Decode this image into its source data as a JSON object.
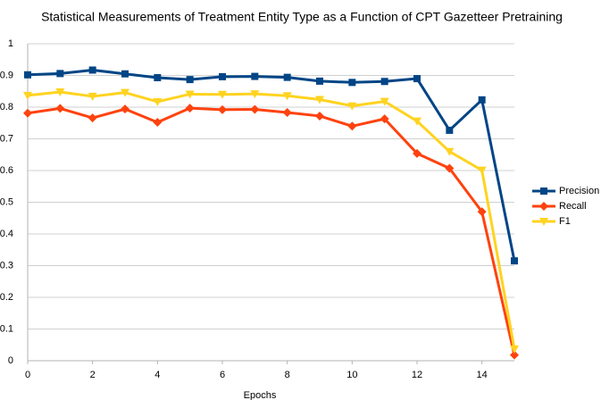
{
  "chart_data": {
    "type": "line",
    "title": "Statistical Measurements of Treatment Entity Type as a Function of CPT Gazetteer Pretraining",
    "x_label": "Epochs",
    "x": [
      0,
      1,
      2,
      3,
      4,
      5,
      6,
      7,
      8,
      9,
      10,
      11,
      12,
      13,
      14,
      15
    ],
    "series": [
      {
        "name": "Precision",
        "color": "#004586",
        "marker": "square",
        "values": [
          0.902,
          0.906,
          0.917,
          0.905,
          0.893,
          0.887,
          0.896,
          0.897,
          0.894,
          0.882,
          0.878,
          0.881,
          0.89,
          0.727,
          0.823,
          0.315
        ]
      },
      {
        "name": "Recall",
        "color": "#ff420e",
        "marker": "diamond",
        "values": [
          0.781,
          0.796,
          0.766,
          0.794,
          0.752,
          0.797,
          0.792,
          0.793,
          0.783,
          0.772,
          0.74,
          0.763,
          0.654,
          0.607,
          0.47,
          0.018
        ]
      },
      {
        "name": "F1",
        "color": "#ffd320",
        "marker": "triangle-down",
        "values": [
          0.837,
          0.848,
          0.834,
          0.846,
          0.817,
          0.841,
          0.84,
          0.842,
          0.836,
          0.824,
          0.804,
          0.818,
          0.756,
          0.66,
          0.601,
          0.037
        ]
      }
    ],
    "xlim": [
      0,
      15
    ],
    "xticks": [
      0,
      2,
      4,
      6,
      8,
      10,
      12,
      14
    ],
    "ylim": [
      0,
      1
    ],
    "yticks": [
      0,
      0.1,
      0.2,
      0.3,
      0.4,
      0.5,
      0.6,
      0.7,
      0.8,
      0.9,
      1
    ],
    "grid": true,
    "legend": "right"
  }
}
